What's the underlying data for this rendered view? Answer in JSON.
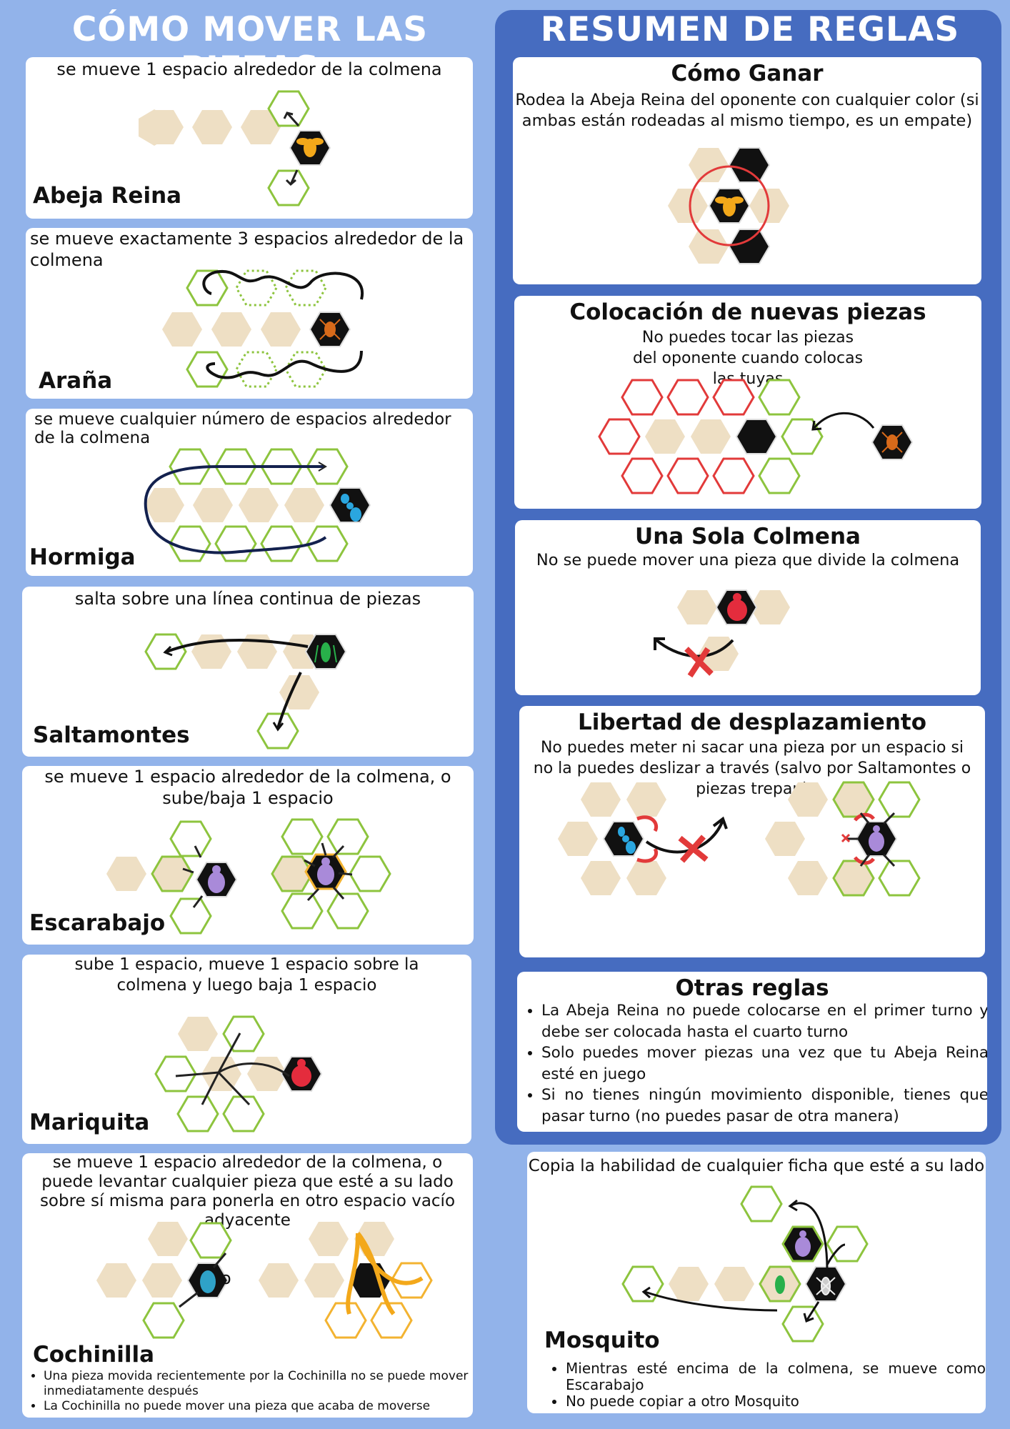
{
  "left_title": "CÓMO MOVER LAS PIEZAS",
  "right_title": "RESUMEN DE REGLAS",
  "colors": {
    "background": "#92b3ea",
    "panel": "#466cc0",
    "tile": "#eedfc4",
    "green": "#8dc43e",
    "red": "#e23a3a",
    "orange": "#f3b331"
  },
  "pieces": {
    "queen": {
      "desc": "se mueve 1 espacio alrededor de la colmena",
      "name": "Abeja Reina",
      "icon": "bee-icon"
    },
    "spider": {
      "desc": "se mueve exactamente 3 espacios alrededor de la colmena",
      "name": "Araña",
      "icon": "spider-icon"
    },
    "ant": {
      "desc": "se mueve cualquier número de espacios alrededor de la colmena",
      "name": "Hormiga",
      "icon": "ant-icon"
    },
    "grasshopper": {
      "desc": "salta sobre una línea continua de piezas",
      "name": "Saltamontes",
      "icon": "grasshopper-icon"
    },
    "beetle": {
      "desc": "se mueve 1 espacio alrededor de la colmena, o sube/baja 1 espacio",
      "name": "Escarabajo",
      "icon": "beetle-icon"
    },
    "ladybug": {
      "desc": "sube 1 espacio, mueve 1 espacio sobre la colmena y luego baja 1 espacio",
      "name": "Mariquita",
      "icon": "ladybug-icon"
    },
    "pillbug": {
      "desc": "se mueve 1 espacio alrededor de la colmena, o puede levantar cualquier pieza que esté a su lado sobre sí misma para ponerla en otro espacio vacío adyacente",
      "name": "Cochinilla",
      "icon": "pillbug-icon",
      "or": "o",
      "notes": [
        "Una pieza movida recientemente por la Cochinilla no se puede mover inmediatamente después",
        "La Cochinilla no puede mover una pieza que acaba de moverse"
      ]
    },
    "mosquito": {
      "desc": "Copia la habilidad de cualquier ficha que esté a su lado",
      "name": "Mosquito",
      "icon": "mosquito-icon",
      "notes": [
        "Mientras esté encima de la colmena, se mueve como Escarabajo",
        "No puede copiar a otro Mosquito"
      ]
    }
  },
  "rules": {
    "win": {
      "title": "Cómo Ganar",
      "text": "Rodea la Abeja Reina del oponente con cualquier color (si ambas están rodeadas al mismo tiempo, es un empate)"
    },
    "placement": {
      "title": "Colocación de nuevas piezas",
      "text": "No puedes tocar las piezas del oponente cuando colocas las tuyas"
    },
    "one_hive": {
      "title": "Una Sola Colmena",
      "text": "No se puede mover una pieza que divide la colmena"
    },
    "freedom": {
      "title": "Libertad de desplazamiento",
      "text": "No puedes meter ni sacar una pieza por un espacio si no la puedes deslizar a través (salvo por Saltamontes o piezas trepan)"
    },
    "other": {
      "title": "Otras reglas",
      "items": [
        "La Abeja Reina no puede colocarse en el primer turno y debe ser colocada hasta el cuarto turno",
        "Solo puedes mover piezas una vez que tu Abeja Reina esté en juego",
        "Si no tienes ningún movimiento disponible, tienes que pasar turno (no puedes pasar de otra manera)"
      ]
    }
  }
}
